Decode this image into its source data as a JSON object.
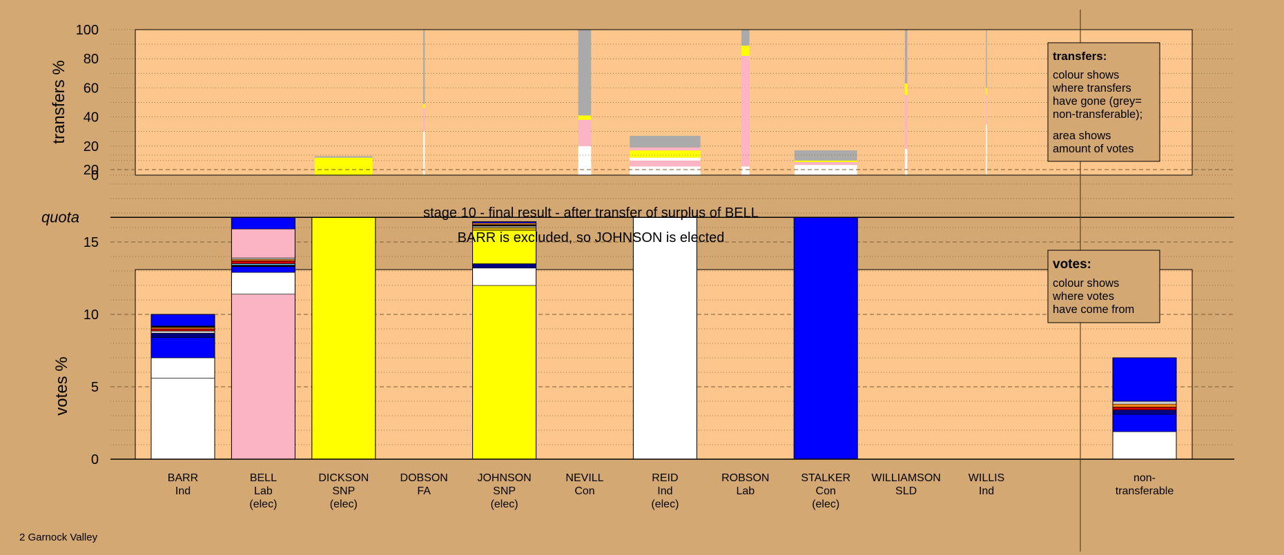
{
  "colors": {
    "background": "#d4a872",
    "plot_bg": "#fcc68c",
    "white": "#ffffff",
    "pink": "#fbb4c4",
    "yellow": "#ffff00",
    "blue": "#0000ff",
    "grey": "#aaaaaa",
    "orange": "#ff8c1a",
    "red": "#cc0000",
    "black": "#000000",
    "gold": "#c8a000",
    "lightgrey": "#cccccc",
    "skyblue": "#66ccff",
    "darkblue": "#000080"
  },
  "title": {
    "line1": "stage 10 - final result - after transfer of surplus of BELL",
    "line2": "BARR is excluded, so JOHNSON is elected"
  },
  "footer": {
    "constituency": "2 Garnock Valley"
  },
  "legend_transfers": {
    "heading": "transfers:",
    "lines1": [
      "colour shows",
      "where transfers",
      "have gone (grey=",
      "non-transferable);"
    ],
    "lines2": [
      "area shows",
      "amount of votes"
    ]
  },
  "legend_votes": {
    "heading": "votes:",
    "lines": [
      "colour shows",
      "where votes",
      "have come from"
    ]
  },
  "chart_data": [
    {
      "type": "bar",
      "name": "transfers",
      "ylabel": "transfers %",
      "ylim": [
        0,
        100
      ],
      "yticks": [
        0,
        20,
        40,
        60,
        80,
        100
      ],
      "grid": true,
      "legend_position": "top-right",
      "candidates": [
        {
          "name": "BARR",
          "width": 0,
          "segments": []
        },
        {
          "name": "BELL",
          "width": 0,
          "segments": []
        },
        {
          "name": "DICKSON",
          "width": 0.72,
          "segments": [
            {
              "color": "yellow",
              "value": 12
            },
            {
              "color": "grey",
              "value": 1
            }
          ]
        },
        {
          "name": "DOBSON",
          "width": 0.02,
          "segments": [
            {
              "color": "white",
              "value": 30
            },
            {
              "color": "pink",
              "value": 16
            },
            {
              "color": "yellow",
              "value": 3
            },
            {
              "color": "grey",
              "value": 51
            }
          ]
        },
        {
          "name": "JOHNSON",
          "width": 0,
          "segments": []
        },
        {
          "name": "NEVILL",
          "width": 0.16,
          "segments": [
            {
              "color": "white",
              "value": 20
            },
            {
              "color": "pink",
              "value": 18
            },
            {
              "color": "yellow",
              "value": 3
            },
            {
              "color": "grey",
              "value": 59
            }
          ]
        },
        {
          "name": "REID",
          "width": 0.88,
          "segments": [
            {
              "color": "white",
              "value": 6
            },
            {
              "color": "pink",
              "value": 4
            },
            {
              "color": "white",
              "value": 2
            },
            {
              "color": "yellow",
              "value": 5
            },
            {
              "color": "pink",
              "value": 2
            },
            {
              "color": "grey",
              "value": 8
            }
          ]
        },
        {
          "name": "ROBSON",
          "width": 0.1,
          "segments": [
            {
              "color": "white",
              "value": 6
            },
            {
              "color": "pink",
              "value": 76
            },
            {
              "color": "yellow",
              "value": 7
            },
            {
              "color": "grey",
              "value": 11
            }
          ]
        },
        {
          "name": "STALKER",
          "width": 0.78,
          "segments": [
            {
              "color": "white",
              "value": 7
            },
            {
              "color": "pink",
              "value": 2
            },
            {
              "color": "yellow",
              "value": 1
            },
            {
              "color": "grey",
              "value": 7
            }
          ]
        },
        {
          "name": "WILLIAMSON",
          "width": 0.03,
          "segments": [
            {
              "color": "white",
              "value": 18
            },
            {
              "color": "pink",
              "value": 37
            },
            {
              "color": "yellow",
              "value": 8
            },
            {
              "color": "grey",
              "value": 37
            }
          ]
        },
        {
          "name": "WILLIS",
          "width": 0.012,
          "segments": [
            {
              "color": "white",
              "value": 35
            },
            {
              "color": "pink",
              "value": 20
            },
            {
              "color": "yellow",
              "value": 5
            },
            {
              "color": "grey",
              "value": 40
            }
          ]
        }
      ]
    },
    {
      "type": "bar",
      "name": "votes",
      "ylabel": "votes %",
      "ylim": [
        0,
        22
      ],
      "yticks": [
        0,
        5,
        10,
        15,
        20
      ],
      "quota": 16.7,
      "quota_label": "quota",
      "grid": true,
      "legend_position": "top-right",
      "candidates": [
        {
          "name": "BARR",
          "party": "Ind",
          "status": "",
          "segments": [
            {
              "color": "white",
              "value": 5.6
            },
            {
              "color": "white",
              "value": 1.4
            },
            {
              "color": "blue",
              "value": 1.4
            },
            {
              "color": "darkblue",
              "value": 0.3
            },
            {
              "color": "lightgrey",
              "value": 0.15
            },
            {
              "color": "red",
              "value": 0.15
            },
            {
              "color": "orange",
              "value": 0.1
            },
            {
              "color": "black",
              "value": 0.1
            },
            {
              "color": "blue",
              "value": 0.8
            }
          ]
        },
        {
          "name": "BELL",
          "party": "Lab",
          "status": "(elec)",
          "segments": [
            {
              "color": "pink",
              "value": 11.4
            },
            {
              "color": "white",
              "value": 1.5
            },
            {
              "color": "blue",
              "value": 0.4
            },
            {
              "color": "black",
              "value": 0.1
            },
            {
              "color": "skyblue",
              "value": 0.1
            },
            {
              "color": "red",
              "value": 0.2
            },
            {
              "color": "orange",
              "value": 0.1
            },
            {
              "color": "lightgrey",
              "value": 0.1
            },
            {
              "color": "pink",
              "value": 2.0
            },
            {
              "color": "blue",
              "value": 0.8
            }
          ]
        },
        {
          "name": "DICKSON",
          "party": "SNP",
          "status": "(elec)",
          "segments": [
            {
              "color": "yellow",
              "value": 16.7
            }
          ]
        },
        {
          "name": "DOBSON",
          "party": "FA",
          "status": "",
          "segments": []
        },
        {
          "name": "JOHNSON",
          "party": "SNP",
          "status": "(elec)",
          "segments": [
            {
              "color": "yellow",
              "value": 12.0
            },
            {
              "color": "white",
              "value": 1.2
            },
            {
              "color": "darkblue",
              "value": 0.3
            },
            {
              "color": "yellow",
              "value": 2.3
            },
            {
              "color": "gold",
              "value": 0.2
            },
            {
              "color": "lightgrey",
              "value": 0.1
            },
            {
              "color": "black",
              "value": 0.1
            },
            {
              "color": "orange",
              "value": 0.1
            },
            {
              "color": "blue",
              "value": 0.1
            }
          ]
        },
        {
          "name": "NEVILL",
          "party": "Con",
          "status": "",
          "segments": []
        },
        {
          "name": "REID",
          "party": "Ind",
          "status": "(elec)",
          "segments": [
            {
              "color": "white",
              "value": 16.7
            }
          ]
        },
        {
          "name": "ROBSON",
          "party": "Lab",
          "status": "",
          "segments": []
        },
        {
          "name": "STALKER",
          "party": "Con",
          "status": "(elec)",
          "segments": [
            {
              "color": "blue",
              "value": 16.7
            }
          ]
        },
        {
          "name": "WILLIAMSON",
          "party": "SLD",
          "status": "",
          "segments": []
        },
        {
          "name": "WILLIS",
          "party": "Ind",
          "status": "",
          "segments": []
        },
        {
          "name": "non-",
          "party": "transferable",
          "status": "",
          "segments": [
            {
              "color": "white",
              "value": 1.9
            },
            {
              "color": "blue",
              "value": 1.2
            },
            {
              "color": "darkblue",
              "value": 0.3
            },
            {
              "color": "red",
              "value": 0.2
            },
            {
              "color": "orange",
              "value": 0.2
            },
            {
              "color": "lightgrey",
              "value": 0.2
            },
            {
              "color": "blue",
              "value": 3.0
            }
          ]
        }
      ]
    }
  ]
}
